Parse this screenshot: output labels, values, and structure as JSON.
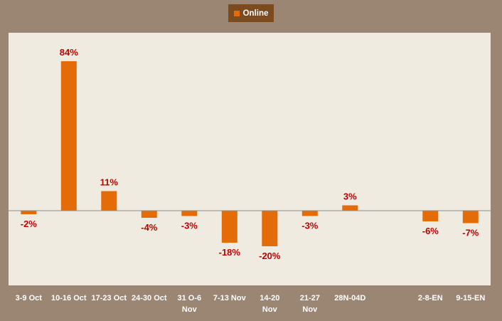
{
  "colors": {
    "background": "#9a8672",
    "plot_area": "#efebe1",
    "bar": "#e36c09",
    "data_label": "#c00000",
    "tick_label": "#ffffff",
    "legend_bg": "#7b4a1e",
    "axis_line": "#8c8c8c"
  },
  "chart_data": {
    "type": "bar",
    "categories": [
      [
        "3-9 Oct"
      ],
      [
        "10-16 Oct"
      ],
      [
        "17-23 Oct"
      ],
      [
        "24-30 Oct"
      ],
      [
        "31 O-6",
        "Nov"
      ],
      [
        "7-13 Nov"
      ],
      [
        "14-20",
        "Nov"
      ],
      [
        "21-27",
        "Nov"
      ],
      [
        "28N-04D"
      ],
      [
        ""
      ],
      [
        "2-8-EN"
      ],
      [
        "9-15-EN"
      ]
    ],
    "series": [
      {
        "name": "Online",
        "values": [
          -2,
          84,
          11,
          -4,
          -3,
          -18,
          -20,
          -3,
          3,
          null,
          -6,
          -7
        ],
        "labels": [
          "-2%",
          "84%",
          "11%",
          "-4%",
          "-3%",
          "-18%",
          "-20%",
          "-3%",
          "3%",
          "",
          "-6%",
          "-7%"
        ]
      }
    ],
    "ylim": [
      -42,
      100
    ],
    "legend_position": "top-center",
    "grid": false
  }
}
